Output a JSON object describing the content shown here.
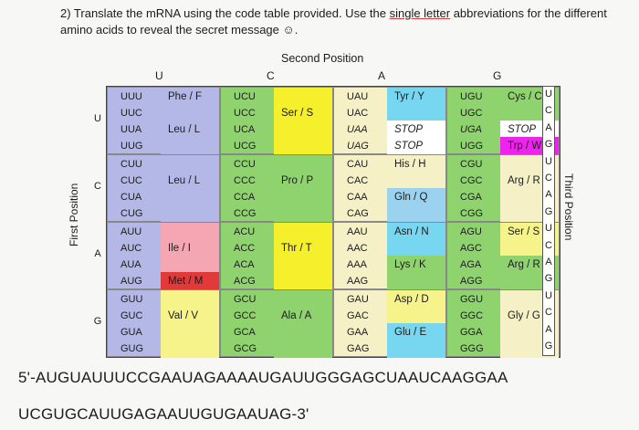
{
  "question": {
    "prefix": "2) Translate the mRNA using the code table provided.  Use the ",
    "underlined": "single letter",
    "suffix": " abbreviations for the different amino acids to reveal the secret message ☺."
  },
  "table": {
    "second_position_label": "Second Position",
    "first_position_label": "First Position",
    "third_position_label": "Third Position",
    "col_headers": [
      "U",
      "C",
      "A",
      "G"
    ],
    "row_headers": [
      "U",
      "C",
      "A",
      "G"
    ],
    "third_letters": [
      "U",
      "C",
      "A",
      "G",
      "U",
      "C",
      "A",
      "G",
      "U",
      "C",
      "A",
      "G",
      "U",
      "C",
      "A",
      "G"
    ],
    "blocks": [
      {
        "codons": [
          "UUU",
          "UUC",
          "UUA",
          "UUG"
        ],
        "aa": [
          "Phe / F",
          "Leu / L"
        ],
        "aa_rows": [
          0,
          2
        ],
        "bg": "#b3b8e6"
      },
      {
        "codons": [
          "UCU",
          "UCC",
          "UCA",
          "UCG"
        ],
        "aa": [
          "Ser / S"
        ],
        "aa_rows": [
          1
        ],
        "bg": "#f5ef2c"
      },
      {
        "codons": [
          "UAU",
          "UAC",
          "UAA",
          "UAG"
        ],
        "aa": [
          "Tyr / Y",
          "STOP",
          "STOP"
        ],
        "aa_rows": [
          0,
          2,
          3
        ],
        "bg": "#ffffff"
      },
      {
        "codons": [
          "UGU",
          "UGC",
          "UGA",
          "UGG"
        ],
        "aa": [
          "Cys / C",
          "STOP",
          "Trp / W"
        ],
        "aa_rows": [
          0,
          2,
          3
        ],
        "bg": "#ffffff"
      },
      {
        "codons": [
          "CUU",
          "CUC",
          "CUA",
          "CUG"
        ],
        "aa": [
          "Leu / L"
        ],
        "aa_rows": [
          1
        ],
        "bg": "#b3b8e6"
      },
      {
        "codons": [
          "CCU",
          "CCC",
          "CCA",
          "CCG"
        ],
        "aa": [
          "Pro / P"
        ],
        "aa_rows": [
          1
        ],
        "bg": "#8fd36e"
      },
      {
        "codons": [
          "CAU",
          "CAC",
          "CAA",
          "CAG"
        ],
        "aa": [
          "His / H",
          "Gln / Q"
        ],
        "aa_rows": [
          0,
          2
        ],
        "bg": "#ffffff"
      },
      {
        "codons": [
          "CGU",
          "CGC",
          "CGA",
          "CGG"
        ],
        "aa": [
          "Arg / R"
        ],
        "aa_rows": [
          1
        ],
        "bg": "#ffffff"
      },
      {
        "codons": [
          "AUU",
          "AUC",
          "AUA",
          "AUG"
        ],
        "aa": [
          "Ile / I",
          "Met / M"
        ],
        "aa_rows": [
          1,
          3
        ],
        "bg": "#ffffff"
      },
      {
        "codons": [
          "ACU",
          "ACC",
          "ACA",
          "ACG"
        ],
        "aa": [
          "Thr / T"
        ],
        "aa_rows": [
          1
        ],
        "bg": "#f5ef2c"
      },
      {
        "codons": [
          "AAU",
          "AAC",
          "AAA",
          "AAG"
        ],
        "aa": [
          "Asn / N",
          "Lys / K"
        ],
        "aa_rows": [
          0,
          2
        ],
        "bg": "#ffffff"
      },
      {
        "codons": [
          "AGU",
          "AGC",
          "AGA",
          "AGG"
        ],
        "aa": [
          "Ser / S",
          "Arg / R"
        ],
        "aa_rows": [
          0,
          2
        ],
        "bg": "#ffffff"
      },
      {
        "codons": [
          "GUU",
          "GUC",
          "GUA",
          "GUG"
        ],
        "aa": [
          "Val / V"
        ],
        "aa_rows": [
          1
        ],
        "bg": "#f6f38a"
      },
      {
        "codons": [
          "GCU",
          "GCC",
          "GCA",
          "GCG"
        ],
        "aa": [
          "Ala / A"
        ],
        "aa_rows": [
          1
        ],
        "bg": "#8fd36e"
      },
      {
        "codons": [
          "GAU",
          "GAC",
          "GAA",
          "GAG"
        ],
        "aa": [
          "Asp / D",
          "Glu / E"
        ],
        "aa_rows": [
          0,
          2
        ],
        "bg": "#ffffff"
      },
      {
        "codons": [
          "GGU",
          "GGC",
          "GGA",
          "GGG"
        ],
        "aa": [
          "Gly / G"
        ],
        "aa_rows": [
          1
        ],
        "bg": "#ffffff"
      }
    ],
    "highlight_colors": {
      "phe": "#b3b8e6",
      "leu": "#b3b8e6",
      "ile": "#f4a6b3",
      "met_row": "#e23a3a",
      "val": "#f6f38a",
      "ser": "#f5ef2c",
      "pro": "#8fd36e",
      "thr": "#f5ef2c",
      "ala": "#8fd36e",
      "tyr": "#77d6f0",
      "stop": "#ffffff",
      "his": "#f6f0c6",
      "gln": "#9ad2ef",
      "asn": "#77d6f0",
      "lys": "#8fd36e",
      "asp": "#f6f38a",
      "glu": "#77d6f0",
      "cys": "#8fd36e",
      "trp": "#ee24ee",
      "arg": "#f6f0c6",
      "ser2": "#f6f38a",
      "arg2": "#8fd36e",
      "gly": "#f6f0c6"
    }
  },
  "sequence": {
    "line1": "5'-AUGUAUUUCCGAAUAGAAAAUGAUUGGGAGCUAAUCAAGGAA",
    "line2": "UCGUGCAUUGAGAAUUGUGAAUAG-3'"
  }
}
